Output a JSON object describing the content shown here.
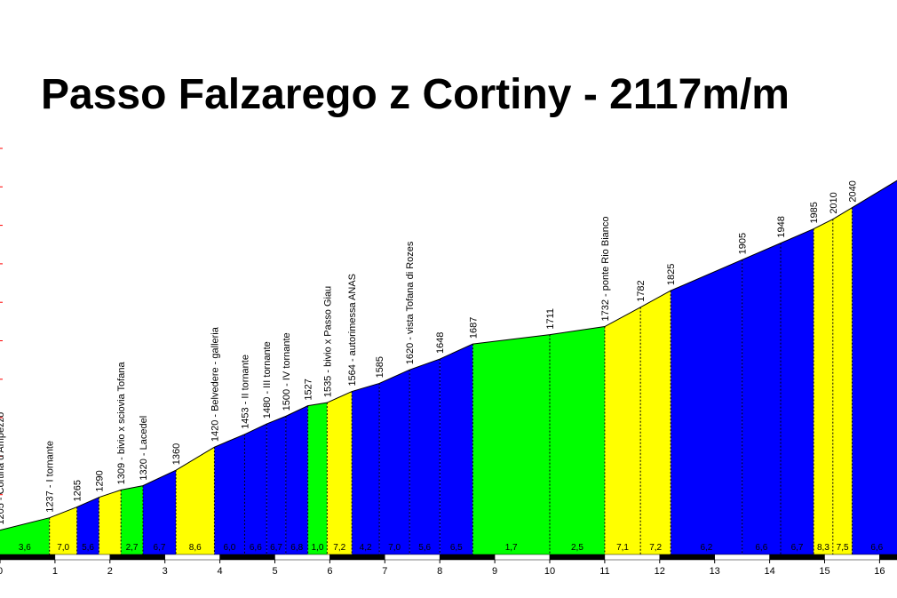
{
  "chart_data": {
    "type": "area",
    "title": "Passo Falzarego z Cortiny  -  2117m/m",
    "xlabel": "",
    "ylabel": "",
    "xlim": [
      0,
      16.4
    ],
    "ylim": [
      1142,
      2190
    ],
    "x_ticks": [
      "0",
      "1",
      "2",
      "3",
      "4",
      "5",
      "6",
      "7",
      "8",
      "9",
      "10",
      "11",
      "12",
      "13",
      "14",
      "15",
      "16"
    ],
    "points": [
      {
        "x": 0.0,
        "y": 1205,
        "label": "1205 - Cortina d'Ampezzo"
      },
      {
        "x": 0.9,
        "y": 1237,
        "label": "1237 - I tornante"
      },
      {
        "x": 1.4,
        "y": 1265,
        "label": "1265"
      },
      {
        "x": 1.8,
        "y": 1290,
        "label": "1290"
      },
      {
        "x": 2.2,
        "y": 1309,
        "label": "1309 - bivio x sciovia Tofana"
      },
      {
        "x": 2.6,
        "y": 1320,
        "label": "1320 - Lacedel"
      },
      {
        "x": 3.2,
        "y": 1360,
        "label": "1360"
      },
      {
        "x": 3.9,
        "y": 1420,
        "label": "1420 - Belvedere - galleria"
      },
      {
        "x": 4.45,
        "y": 1453,
        "label": "1453 - II tornante"
      },
      {
        "x": 4.85,
        "y": 1480,
        "label": "1480 - III tornante"
      },
      {
        "x": 5.2,
        "y": 1500,
        "label": "1500 - IV tornante"
      },
      {
        "x": 5.6,
        "y": 1527,
        "label": "1527"
      },
      {
        "x": 5.95,
        "y": 1535,
        "label": "1535 - bivio x Passo Giau"
      },
      {
        "x": 6.4,
        "y": 1564,
        "label": "1564 - autorimessa ANAS"
      },
      {
        "x": 6.9,
        "y": 1585,
        "label": "1585"
      },
      {
        "x": 7.45,
        "y": 1620,
        "label": "1620 - vista Tofana di Rozes"
      },
      {
        "x": 8.0,
        "y": 1648,
        "label": "1648"
      },
      {
        "x": 8.6,
        "y": 1687,
        "label": "1687"
      },
      {
        "x": 10.0,
        "y": 1711,
        "label": "1711"
      },
      {
        "x": 11.0,
        "y": 1732,
        "label": "1732 - ponte Rio Bianco"
      },
      {
        "x": 11.65,
        "y": 1782,
        "label": "1782"
      },
      {
        "x": 12.2,
        "y": 1825,
        "label": "1825"
      },
      {
        "x": 13.5,
        "y": 1905,
        "label": "1905"
      },
      {
        "x": 14.2,
        "y": 1948,
        "label": "1948"
      },
      {
        "x": 14.8,
        "y": 1985,
        "label": "1985"
      },
      {
        "x": 15.15,
        "y": 2010,
        "label": "2010"
      },
      {
        "x": 15.5,
        "y": 2040,
        "label": "2040"
      },
      {
        "x": 16.4,
        "y": 2117,
        "label": ""
      }
    ],
    "segments": [
      {
        "from_km": 0.0,
        "to_km": 0.9,
        "gradient": "3,6",
        "color": "green"
      },
      {
        "from_km": 0.9,
        "to_km": 1.4,
        "gradient": "7,0",
        "color": "yellow"
      },
      {
        "from_km": 1.4,
        "to_km": 1.8,
        "gradient": "5,6",
        "color": "blue"
      },
      {
        "from_km": 1.8,
        "to_km": 2.2,
        "gradient": "",
        "color": "yellow"
      },
      {
        "from_km": 2.2,
        "to_km": 2.6,
        "gradient": "2,7",
        "color": "green"
      },
      {
        "from_km": 2.6,
        "to_km": 3.2,
        "gradient": "6,7",
        "color": "blue"
      },
      {
        "from_km": 3.2,
        "to_km": 3.9,
        "gradient": "8,6",
        "color": "yellow"
      },
      {
        "from_km": 3.9,
        "to_km": 4.45,
        "gradient": "6,0",
        "color": "blue"
      },
      {
        "from_km": 4.45,
        "to_km": 4.85,
        "gradient": "6,6",
        "color": "blue"
      },
      {
        "from_km": 4.85,
        "to_km": 5.2,
        "gradient": "6,7",
        "color": "blue"
      },
      {
        "from_km": 5.2,
        "to_km": 5.6,
        "gradient": "6,8",
        "color": "blue"
      },
      {
        "from_km": 5.6,
        "to_km": 5.95,
        "gradient": "1,0",
        "color": "green"
      },
      {
        "from_km": 5.95,
        "to_km": 6.4,
        "gradient": "7,2",
        "color": "yellow"
      },
      {
        "from_km": 6.4,
        "to_km": 6.9,
        "gradient": "4,2",
        "color": "blue"
      },
      {
        "from_km": 6.9,
        "to_km": 7.45,
        "gradient": "7,0",
        "color": "blue"
      },
      {
        "from_km": 7.45,
        "to_km": 8.0,
        "gradient": "5,6",
        "color": "blue"
      },
      {
        "from_km": 8.0,
        "to_km": 8.6,
        "gradient": "6,5",
        "color": "blue"
      },
      {
        "from_km": 8.6,
        "to_km": 10.0,
        "gradient": "1,7",
        "color": "green"
      },
      {
        "from_km": 10.0,
        "to_km": 11.0,
        "gradient": "2,5",
        "color": "green"
      },
      {
        "from_km": 11.0,
        "to_km": 11.65,
        "gradient": "7,1",
        "color": "yellow"
      },
      {
        "from_km": 11.65,
        "to_km": 12.2,
        "gradient": "7,2",
        "color": "yellow"
      },
      {
        "from_km": 12.2,
        "to_km": 13.5,
        "gradient": "6,2",
        "color": "blue"
      },
      {
        "from_km": 13.5,
        "to_km": 14.2,
        "gradient": "6,6",
        "color": "blue"
      },
      {
        "from_km": 14.2,
        "to_km": 14.8,
        "gradient": "6,7",
        "color": "blue"
      },
      {
        "from_km": 14.8,
        "to_km": 15.15,
        "gradient": "8,3",
        "color": "yellow"
      },
      {
        "from_km": 15.15,
        "to_km": 15.5,
        "gradient": "7,5",
        "color": "yellow"
      },
      {
        "from_km": 15.5,
        "to_km": 16.4,
        "gradient": "6,6",
        "color": "blue"
      }
    ],
    "colors": {
      "green": "#00ff00",
      "yellow": "#ffff00",
      "blue": "#0000ff",
      "grid_tick": "#ff0000",
      "line": "#000000"
    }
  }
}
